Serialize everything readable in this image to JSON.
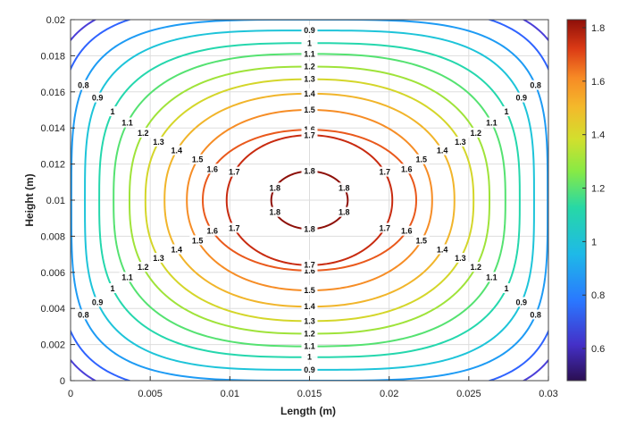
{
  "chart_data": {
    "type": "contour",
    "title": "",
    "xlabel": "Length (m)",
    "ylabel": "Height (m)",
    "xlim": [
      0,
      0.03
    ],
    "ylim": [
      0,
      0.02
    ],
    "xticks": [
      0,
      0.005,
      0.01,
      0.015,
      0.02,
      0.025,
      0.03
    ],
    "xtick_labels": [
      "0",
      "0.005",
      "0.01",
      "0.015",
      "0.02",
      "0.025",
      "0.03"
    ],
    "yticks": [
      0,
      0.002,
      0.004,
      0.006,
      0.008,
      0.01,
      0.012,
      0.014,
      0.016,
      0.018,
      0.02
    ],
    "ytick_labels": [
      "0",
      "0.002",
      "0.004",
      "0.006",
      "0.008",
      "0.01",
      "0.012",
      "0.014",
      "0.016",
      "0.018",
      "0.02"
    ],
    "grid": true,
    "colormap": "jet",
    "color_limits": [
      0.48,
      1.83
    ],
    "colorbar_ticks": [
      0.6,
      0.8,
      1,
      1.2,
      1.4,
      1.6,
      1.8
    ],
    "colorbar_tick_labels": [
      "0.6",
      "0.8",
      "1",
      "1.2",
      "1.4",
      "1.6",
      "1.8"
    ],
    "center": [
      0.015,
      0.01
    ],
    "levels": [
      0.6,
      0.7,
      0.8,
      0.9,
      1.0,
      1.1,
      1.2,
      1.3,
      1.4,
      1.5,
      1.6,
      1.7,
      1.8
    ],
    "level_labels": [
      "0.6",
      "0.7",
      "0.8",
      "0.9",
      "1",
      "1.1",
      "1.2",
      "1.3",
      "1.4",
      "1.5",
      "1.6",
      "1.7",
      "1.8"
    ],
    "contours": [
      {
        "level": 0.6,
        "color": "#4c3fd8",
        "x_halfwidth": 0.0165,
        "y_halfwidth": 0.0112,
        "exponent": 4.5
      },
      {
        "level": 0.7,
        "color": "#2f63ff",
        "x_halfwidth": 0.0158,
        "y_halfwidth": 0.0107,
        "exponent": 4.2
      },
      {
        "level": 0.8,
        "color": "#1e9bf4",
        "x_halfwidth": 0.01495,
        "y_halfwidth": 0.01,
        "exponent": 3.8
      },
      {
        "level": 0.9,
        "color": "#1ec4d9",
        "x_halfwidth": 0.0141,
        "y_halfwidth": 0.0094,
        "exponent": 3.4
      },
      {
        "level": 1.0,
        "color": "#25d7ad",
        "x_halfwidth": 0.0132,
        "y_halfwidth": 0.0087,
        "exponent": 3.0
      },
      {
        "level": 1.1,
        "color": "#55e271",
        "x_halfwidth": 0.0123,
        "y_halfwidth": 0.0081,
        "exponent": 2.7
      },
      {
        "level": 1.2,
        "color": "#9fe33a",
        "x_halfwidth": 0.0113,
        "y_halfwidth": 0.0074,
        "exponent": 2.5
      },
      {
        "level": 1.3,
        "color": "#d4d62a",
        "x_halfwidth": 0.0103,
        "y_halfwidth": 0.0067,
        "exponent": 2.35
      },
      {
        "level": 1.4,
        "color": "#f1b52b",
        "x_halfwidth": 0.0091,
        "y_halfwidth": 0.0059,
        "exponent": 2.25
      },
      {
        "level": 1.5,
        "color": "#f68d26",
        "x_halfwidth": 0.0077,
        "y_halfwidth": 0.005,
        "exponent": 2.15
      },
      {
        "level": 1.6,
        "color": "#e9591c",
        "x_halfwidth": 0.0067,
        "y_halfwidth": 0.0039,
        "exponent": 2.1
      },
      {
        "level": 1.7,
        "color": "#c82b10",
        "x_halfwidth": 0.0052,
        "y_halfwidth": 0.0036,
        "exponent": 2.05
      },
      {
        "level": 1.8,
        "color": "#8e1009",
        "x_halfwidth": 0.0024,
        "y_halfwidth": 0.0016,
        "exponent": 2.0
      }
    ]
  }
}
